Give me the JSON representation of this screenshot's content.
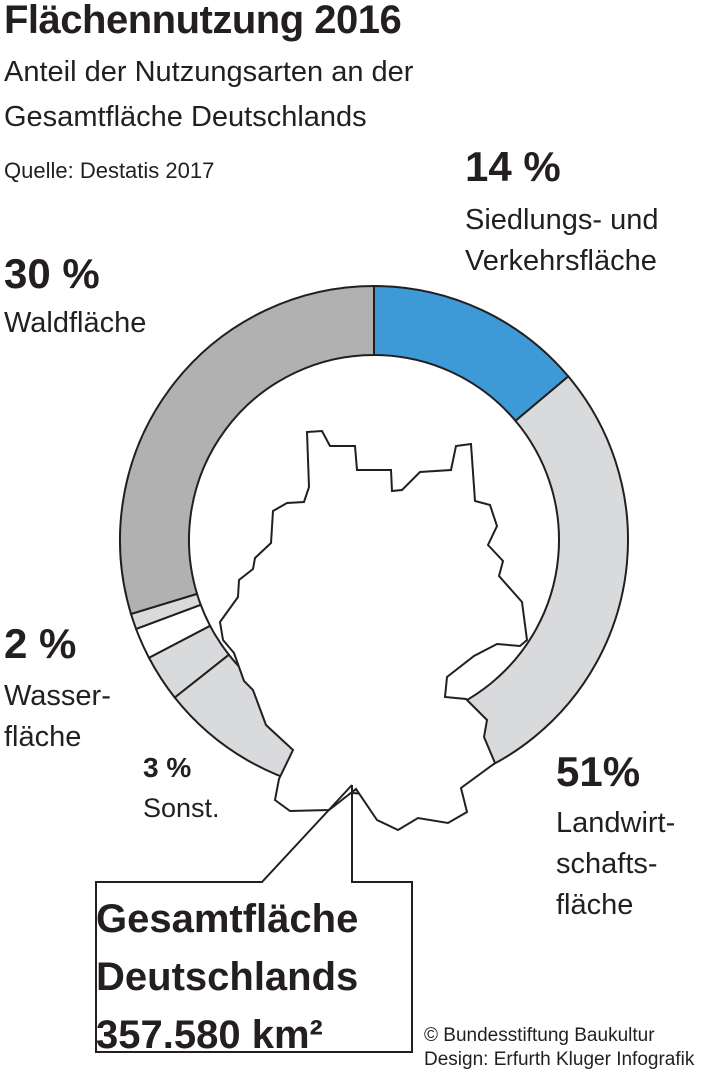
{
  "header": {
    "title": "Flächennutzung 2016",
    "subtitle_line1": "Anteil der Nutzungsarten an der",
    "subtitle_line2": "Gesamtfläche Deutschlands",
    "source": "Quelle: Destatis 2017"
  },
  "chart_data": {
    "type": "pie",
    "title": "Flächennutzung 2016",
    "subtitle": "Anteil der Nutzungsarten an der Gesamtfläche Deutschlands",
    "unit": "%",
    "slices": [
      {
        "label": "Siedlungs- und Verkehrsfläche",
        "value": 14,
        "color": "#3d9ad6"
      },
      {
        "label": "Landwirtschaftsfläche",
        "value": 51,
        "color": "#d9dadb"
      },
      {
        "label": "Sonst.",
        "value": 3,
        "color": "#d9dadb"
      },
      {
        "label": "Wasserfläche",
        "value": 2,
        "color": "#ffffff"
      },
      {
        "label": "Sonst.",
        "value": 1,
        "color": "#d9dadb"
      },
      {
        "label": "Waldfläche",
        "value": 30,
        "color": "#b1b1b2"
      }
    ]
  },
  "labels": {
    "siedlung_pct": "14 %",
    "siedlung_text": "Siedlungs- und Verkehrsfläche",
    "wald_pct": "30 %",
    "wald_text": "Waldfläche",
    "wasser_pct": "2 %",
    "wasser_text": "Wasser-fläche",
    "sonst_pct": "3 %",
    "sonst_text": "Sonst.",
    "landwirt_pct": "51%",
    "landwirt_text": "Landwirt-schafts-fläche"
  },
  "total": {
    "line1": "Gesamtfläche",
    "line2": "Deutschlands",
    "line3": "357.580 km²"
  },
  "credits": {
    "line1": "© Bundesstiftung Baukultur",
    "line2": "Design: Erfurth Kluger Infografik"
  }
}
